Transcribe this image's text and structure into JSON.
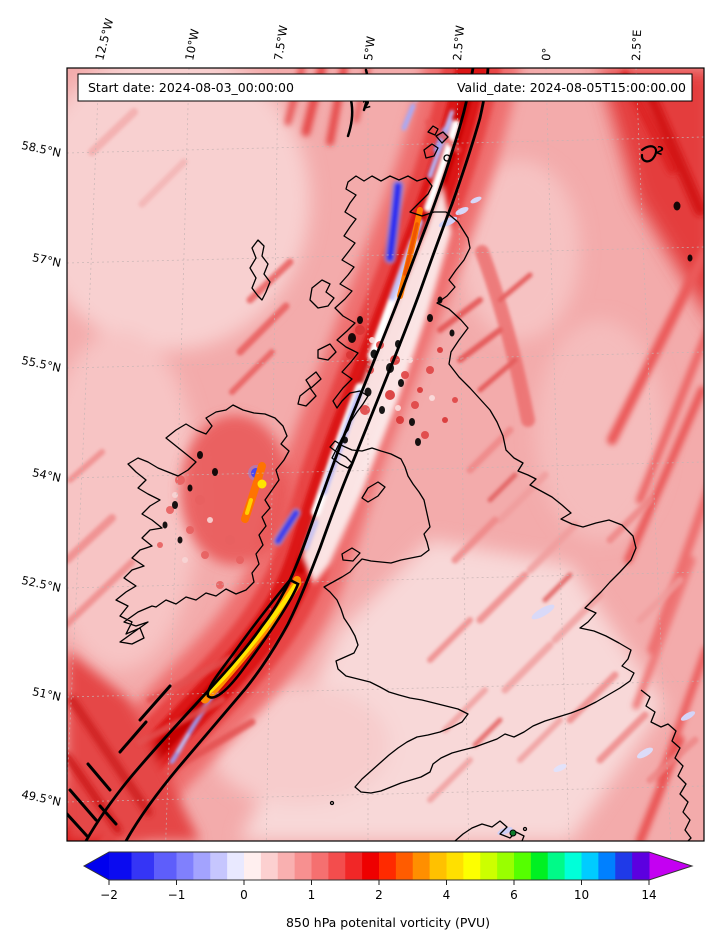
{
  "title_bar": {
    "start": "Start date: 2024-08-03_00:00:00",
    "valid": "Valid_date: 2024-08-05T15:00:00.00"
  },
  "caption": "850 hPa potenital vorticity (PVU)",
  "axes": {
    "lon_labels": [
      "12.5°W",
      "10°W",
      "7.5°W",
      "5°W",
      "2.5°W",
      "0°",
      "2.5°E"
    ],
    "lat_labels": [
      "58.5°N",
      "57°N",
      "55.5°N",
      "54°N",
      "52.5°N",
      "51°N",
      "49.5°N"
    ]
  },
  "chart_data": {
    "type": "heatmap",
    "title": "",
    "start_date_text": "Start date: 2024-08-03_00:00:00",
    "valid_date_text": "Valid_date: 2024-08-05T15:00:00.00",
    "xlabel": "",
    "ylabel": "",
    "caption": "850 hPa potenital vorticity (PVU)",
    "lon_ticks": [
      "12.5°W",
      "10°W",
      "7.5°W",
      "5°W",
      "2.5°W",
      "0°",
      "2.5°E"
    ],
    "lat_ticks": [
      "58.5°N",
      "57°N",
      "55.5°N",
      "54°N",
      "52.5°N",
      "51°N",
      "49.5°N"
    ],
    "grid": true,
    "legend_position": "bottom",
    "contour_label": "2",
    "colorbar": {
      "orientation": "horizontal",
      "tick_labels": [
        "−2",
        "−1",
        "0",
        "1",
        "2",
        "4",
        "6",
        "10",
        "14"
      ],
      "levels": [
        -2,
        -1,
        0,
        1,
        2,
        4,
        6,
        10,
        14
      ],
      "under_color": "#0000ee",
      "over_color": "#c400f2",
      "segment_colors": [
        "#0b0bf0",
        "#3535f6",
        "#5e5efb",
        "#8080fd",
        "#a3a3fe",
        "#c6c6fe",
        "#e9e9ff",
        "#ffefef",
        "#fcd0d0",
        "#f9b0b0",
        "#f79090",
        "#f57070",
        "#f34d4d",
        "#f12727",
        "#ee0000",
        "#ff2a00",
        "#ff5c00",
        "#ff8f00",
        "#ffc100",
        "#ffe000",
        "#fdff00",
        "#ccff00",
        "#99ff00",
        "#55ff00",
        "#00f022",
        "#00fa88",
        "#00ffd9",
        "#00ccff",
        "#0080ff",
        "#1f3ae8",
        "#5c00e0"
      ]
    }
  }
}
